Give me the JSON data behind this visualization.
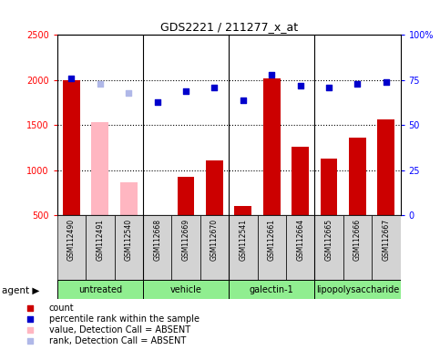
{
  "title": "GDS2221 / 211277_x_at",
  "samples": [
    "GSM112490",
    "GSM112491",
    "GSM112540",
    "GSM112668",
    "GSM112669",
    "GSM112670",
    "GSM112541",
    "GSM112661",
    "GSM112664",
    "GSM112665",
    "GSM112666",
    "GSM112667"
  ],
  "counts": [
    2000,
    1530,
    870,
    500,
    930,
    1110,
    600,
    2020,
    1260,
    1130,
    1360,
    1560
  ],
  "count_absent": [
    false,
    true,
    true,
    false,
    false,
    false,
    false,
    false,
    false,
    false,
    false,
    false
  ],
  "percentile_ranks": [
    76,
    73,
    68,
    63,
    69,
    71,
    64,
    78,
    72,
    71,
    73,
    74
  ],
  "rank_absent": [
    false,
    true,
    true,
    false,
    false,
    false,
    false,
    false,
    false,
    false,
    false,
    false
  ],
  "agents": [
    {
      "label": "untreated",
      "start": 0,
      "end": 3
    },
    {
      "label": "vehicle",
      "start": 3,
      "end": 6
    },
    {
      "label": "galectin-1",
      "start": 6,
      "end": 9
    },
    {
      "label": "lipopolysaccharide",
      "start": 9,
      "end": 12
    }
  ],
  "ylim_left": [
    500,
    2500
  ],
  "ylim_right": [
    0,
    100
  ],
  "left_ticks": [
    500,
    1000,
    1500,
    2000,
    2500
  ],
  "right_ticks": [
    0,
    25,
    50,
    75,
    100
  ],
  "right_tick_labels": [
    "0",
    "25",
    "50",
    "75",
    "100%"
  ],
  "hgrid_vals": [
    1000,
    1500,
    2000
  ],
  "group_seps": [
    2.5,
    5.5,
    8.5
  ],
  "bar_color_present": "#cc0000",
  "bar_color_absent": "#ffb6c1",
  "dot_color_present": "#0000cc",
  "dot_color_absent": "#b0b8e8",
  "agent_bg": "#90EE90",
  "sample_bg": "#d3d3d3"
}
